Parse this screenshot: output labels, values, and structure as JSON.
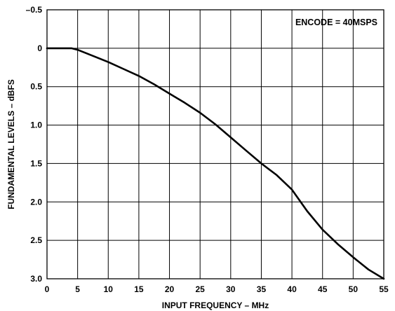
{
  "chart_data": {
    "type": "line",
    "title": "",
    "xlabel": "INPUT FREQUENCY – MHz",
    "ylabel": "FUNDAMENTAL LEVELS – dBFS",
    "xlim": [
      0,
      55
    ],
    "ylim": [
      -0.5,
      3.0
    ],
    "y_axis_inverted": true,
    "grid": true,
    "x_ticks": [
      0,
      5,
      10,
      15,
      20,
      25,
      30,
      35,
      40,
      45,
      50,
      55
    ],
    "y_ticks": [
      -0.5,
      0,
      0.5,
      1.0,
      1.5,
      2.0,
      2.5,
      3.0
    ],
    "y_tick_labels": [
      "–0.5",
      "0",
      "0.5",
      "1.0",
      "1.5",
      "2.0",
      "2.5",
      "3.0"
    ],
    "annotation": "ENCODE = 40MSPS",
    "series": [
      {
        "values": [
          [
            0,
            0.0
          ],
          [
            2,
            0.0
          ],
          [
            4,
            0.0
          ],
          [
            5,
            0.02
          ],
          [
            7.5,
            0.1
          ],
          [
            10,
            0.18
          ],
          [
            12.5,
            0.27
          ],
          [
            15,
            0.36
          ],
          [
            17.5,
            0.47
          ],
          [
            20,
            0.59
          ],
          [
            22.5,
            0.71
          ],
          [
            25,
            0.84
          ],
          [
            27.5,
            0.99
          ],
          [
            30,
            1.16
          ],
          [
            32.5,
            1.33
          ],
          [
            35,
            1.5
          ],
          [
            37.5,
            1.65
          ],
          [
            40,
            1.84
          ],
          [
            42.5,
            2.12
          ],
          [
            45,
            2.36
          ],
          [
            47.5,
            2.55
          ],
          [
            50,
            2.72
          ],
          [
            52.5,
            2.88
          ],
          [
            55,
            3.0
          ]
        ]
      }
    ]
  }
}
